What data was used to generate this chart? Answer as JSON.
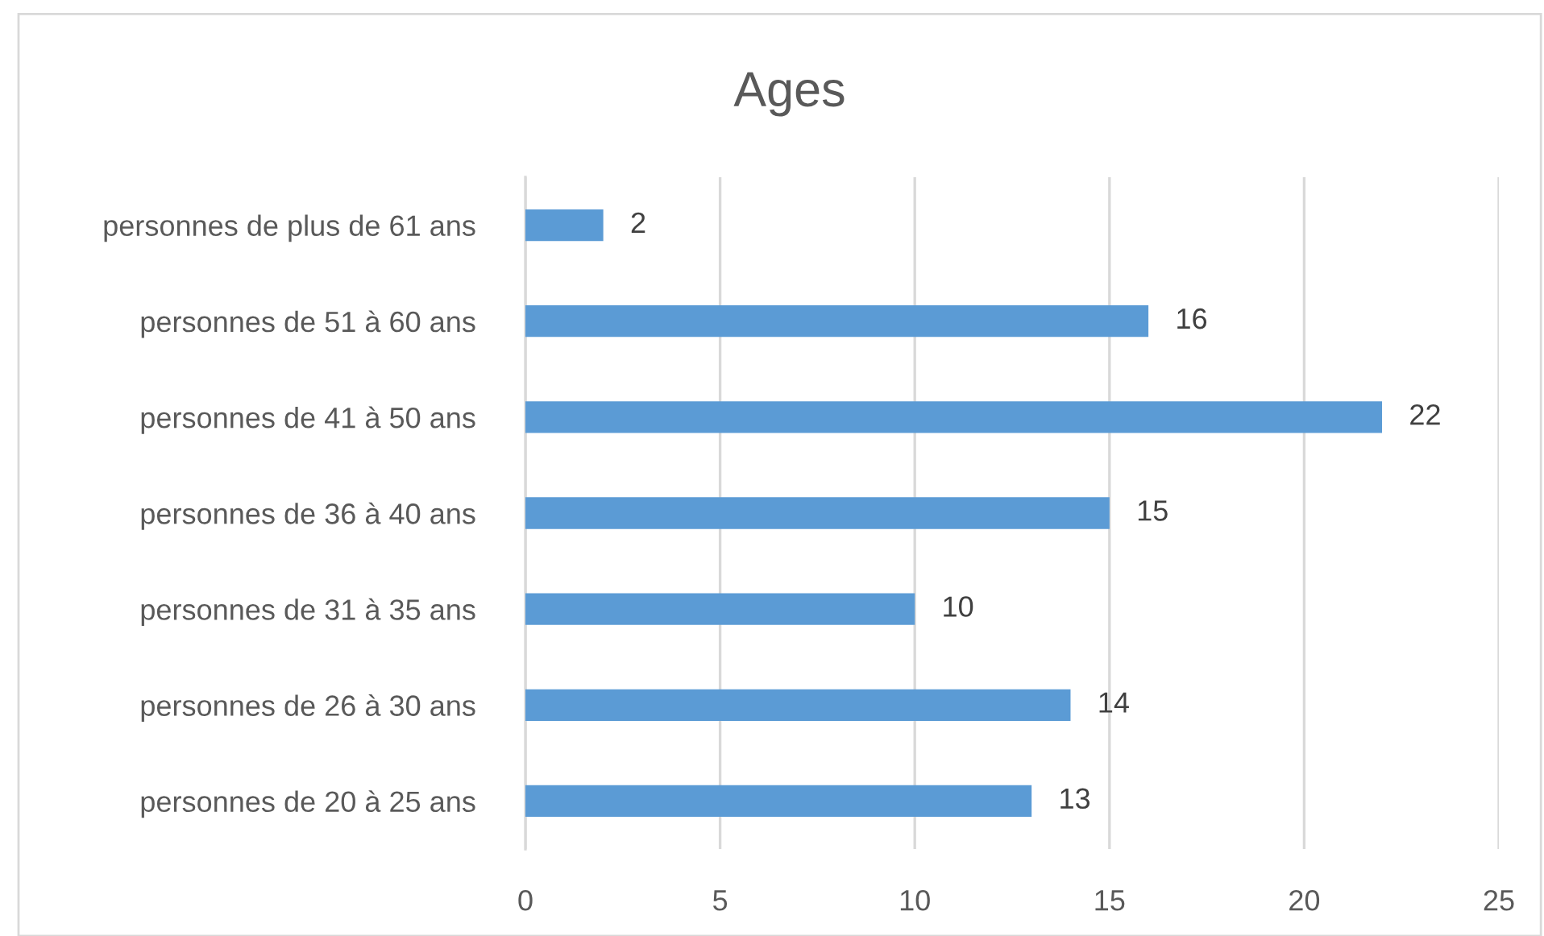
{
  "chart_data": {
    "type": "bar",
    "title": "Ages",
    "orientation": "horizontal",
    "categories": [
      "personnes de plus de 61 ans",
      "personnes de 51 à 60 ans",
      "personnes de 41 à 50 ans",
      "personnes de 36 à 40 ans",
      "personnes de 31 à 35 ans",
      "personnes de 26 à 30 ans",
      "personnes de 20 à 25 ans"
    ],
    "values": [
      2,
      16,
      22,
      15,
      10,
      14,
      13
    ],
    "color": "#5b9bd5",
    "xlim": [
      0,
      25
    ],
    "xticks": [
      0,
      5,
      10,
      15,
      20,
      25
    ],
    "grid": "x",
    "data_labels": true,
    "legend": false
  }
}
